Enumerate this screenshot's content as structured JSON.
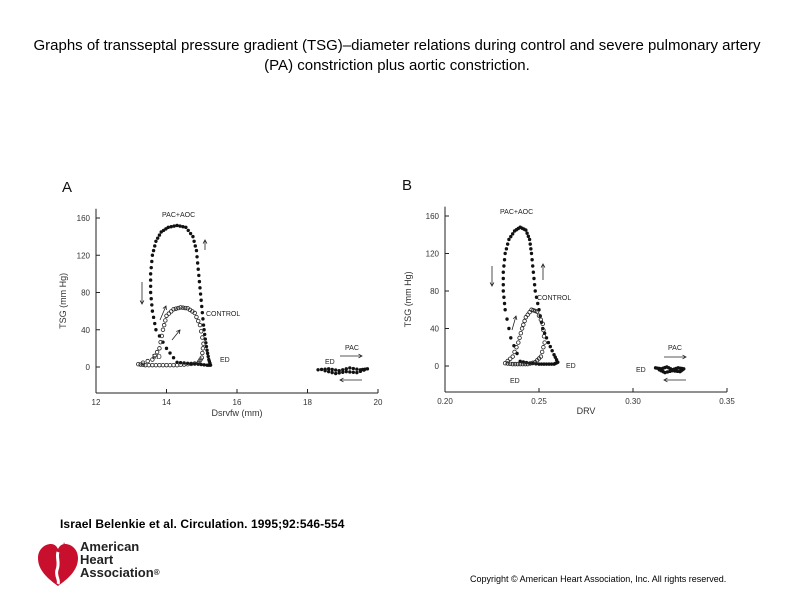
{
  "title": "Graphs of transseptal pressure gradient (TSG)–diameter relations during control and severe pulmonary artery (PA) constriction plus aortic constriction.",
  "citation": "Israel Belenkie et al. Circulation. 1995;92:546-554",
  "copyright": "Copyright © American Heart Association, Inc. All rights reserved.",
  "logo": {
    "line1": "American",
    "line2": "Heart",
    "line3": "Association",
    "mark": "®",
    "color": "#c8102e"
  },
  "chart_data": [
    {
      "type": "scatter",
      "panel_label": "A",
      "xlabel": "Dsrvfw (mm)",
      "ylabel": "TSG (mm Hg)",
      "xlim": [
        12,
        20
      ],
      "ylim": [
        -20,
        170
      ],
      "xticks": [
        12,
        14,
        16,
        18,
        20
      ],
      "yticks": [
        0,
        40,
        80,
        120,
        160
      ],
      "annotations": [
        "PAC+AOC",
        "CONTROL",
        "ED",
        "ED",
        "ED",
        "PAC"
      ],
      "series": [
        {
          "name": "PAC+AOC",
          "marker": "filled",
          "x": [
            13.7,
            13.6,
            13.55,
            13.55,
            13.6,
            13.7,
            13.85,
            14.05,
            14.3,
            14.55,
            14.75,
            14.85,
            14.9,
            14.95,
            15.0,
            15.05,
            15.1,
            15.15,
            15.2,
            15.25,
            15.15,
            14.9,
            14.6,
            14.3,
            14.0
          ],
          "y": [
            40,
            60,
            80,
            100,
            120,
            135,
            145,
            150,
            152,
            150,
            140,
            125,
            105,
            85,
            65,
            45,
            30,
            18,
            8,
            2,
            2,
            3,
            4,
            5,
            20
          ]
        },
        {
          "name": "CONTROL",
          "marker": "open",
          "x": [
            13.2,
            13.6,
            13.8,
            13.9,
            14.0,
            14.2,
            14.4,
            14.6,
            14.8,
            14.95,
            15.05,
            15.0,
            14.9,
            14.6,
            14.3,
            14.0,
            13.7,
            13.4
          ],
          "y": [
            3,
            8,
            20,
            40,
            55,
            62,
            64,
            63,
            58,
            45,
            25,
            10,
            4,
            3,
            2,
            2,
            2,
            2
          ]
        },
        {
          "name": "PAC",
          "marker": "filled",
          "x": [
            18.3,
            18.6,
            18.9,
            19.2,
            19.5,
            19.7,
            19.4,
            19.1,
            18.8,
            18.5
          ],
          "y": [
            -3,
            -2,
            -4,
            -1,
            -3,
            -2,
            -6,
            -5,
            -7,
            -4
          ]
        }
      ]
    },
    {
      "type": "scatter",
      "panel_label": "B",
      "xlabel": "DRV",
      "ylabel": "TSG (mm Hg)",
      "xlim": [
        0.2,
        0.35
      ],
      "ylim": [
        -20,
        170
      ],
      "xticks": [
        0.2,
        0.25,
        0.3,
        0.35
      ],
      "yticks": [
        0,
        40,
        80,
        120,
        160
      ],
      "annotations": [
        "PAC+AOC",
        "CONTROL",
        "ED",
        "ED",
        "ED",
        "PAC"
      ],
      "series": [
        {
          "name": "PAC+AOC",
          "marker": "filled",
          "x": [
            0.232,
            0.231,
            0.231,
            0.232,
            0.234,
            0.237,
            0.24,
            0.243,
            0.245,
            0.246,
            0.247,
            0.248,
            0.25,
            0.252,
            0.255,
            0.258,
            0.26,
            0.258,
            0.254,
            0.25,
            0.245,
            0.24,
            0.235
          ],
          "y": [
            60,
            80,
            100,
            120,
            135,
            144,
            148,
            145,
            135,
            120,
            100,
            80,
            60,
            40,
            25,
            12,
            4,
            2,
            2,
            2,
            3,
            5,
            30
          ]
        },
        {
          "name": "CONTROL",
          "marker": "open",
          "x": [
            0.232,
            0.236,
            0.239,
            0.241,
            0.243,
            0.246,
            0.249,
            0.252,
            0.253,
            0.251,
            0.248,
            0.244,
            0.24,
            0.236
          ],
          "y": [
            3,
            10,
            25,
            40,
            52,
            60,
            58,
            45,
            25,
            10,
            4,
            2,
            2,
            2
          ]
        },
        {
          "name": "PAC",
          "marker": "filled",
          "x": [
            0.312,
            0.315,
            0.318,
            0.321,
            0.324,
            0.327,
            0.325,
            0.321,
            0.317,
            0.314
          ],
          "y": [
            -2,
            -3,
            -1,
            -4,
            -2,
            -3,
            -6,
            -5,
            -7,
            -4
          ]
        }
      ]
    }
  ]
}
